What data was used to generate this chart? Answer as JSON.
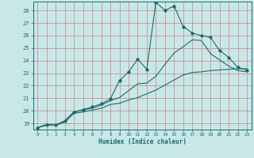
{
  "xlabel": "Humidex (Indice chaleur)",
  "background_color": "#c8e8e8",
  "grid_color": "#d08080",
  "line_color": "#1a6b6b",
  "xlim": [
    -0.5,
    23.5
  ],
  "ylim": [
    18.5,
    28.7
  ],
  "xticks": [
    0,
    1,
    2,
    3,
    4,
    5,
    6,
    7,
    8,
    9,
    10,
    11,
    12,
    13,
    14,
    15,
    16,
    17,
    18,
    19,
    20,
    21,
    22,
    23
  ],
  "yticks": [
    19,
    20,
    21,
    22,
    23,
    24,
    25,
    26,
    27,
    28
  ],
  "line1_x": [
    0,
    1,
    2,
    3,
    4,
    5,
    6,
    7,
    8,
    9,
    10,
    11,
    12,
    13,
    14,
    15,
    16,
    17,
    18,
    19,
    20,
    21,
    22,
    23
  ],
  "line1_y": [
    18.65,
    18.9,
    18.85,
    19.2,
    19.9,
    20.1,
    20.3,
    20.55,
    20.95,
    22.4,
    23.1,
    24.1,
    23.3,
    28.65,
    28.0,
    28.35,
    26.7,
    26.2,
    26.0,
    25.85,
    24.8,
    24.25,
    23.45,
    23.25
  ],
  "line2_x": [
    0,
    1,
    2,
    3,
    4,
    5,
    6,
    7,
    8,
    9,
    10,
    11,
    12,
    13,
    14,
    15,
    16,
    17,
    18,
    19,
    20,
    21,
    22,
    23
  ],
  "line2_y": [
    18.65,
    18.9,
    18.85,
    19.2,
    19.9,
    20.05,
    20.2,
    20.45,
    20.8,
    21.05,
    21.6,
    22.15,
    22.2,
    22.75,
    23.7,
    24.6,
    25.1,
    25.65,
    25.6,
    24.55,
    24.05,
    23.55,
    23.2,
    23.1
  ],
  "line3_x": [
    0,
    1,
    2,
    3,
    4,
    5,
    6,
    7,
    8,
    9,
    10,
    11,
    12,
    13,
    14,
    15,
    16,
    17,
    18,
    19,
    20,
    21,
    22,
    23
  ],
  "line3_y": [
    18.65,
    18.85,
    18.85,
    19.1,
    19.8,
    19.9,
    20.05,
    20.2,
    20.5,
    20.6,
    20.85,
    21.05,
    21.35,
    21.65,
    22.05,
    22.45,
    22.85,
    23.05,
    23.1,
    23.2,
    23.25,
    23.3,
    23.35,
    23.35
  ]
}
